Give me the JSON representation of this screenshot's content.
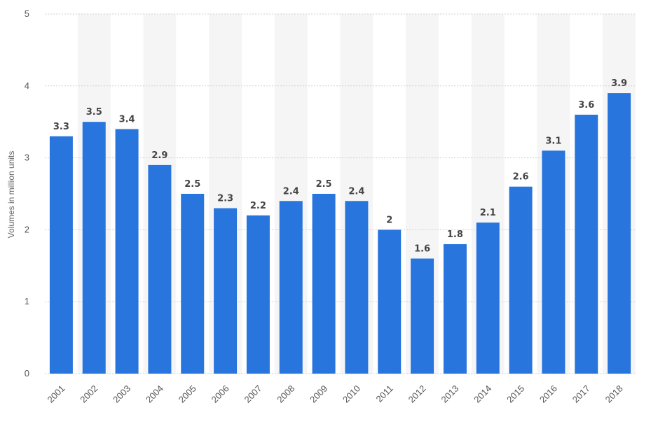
{
  "chart_data": {
    "type": "bar",
    "title": "",
    "xlabel": "",
    "ylabel": "Volumes in million units",
    "categories": [
      "2001",
      "2002",
      "2003",
      "2004",
      "2005",
      "2006",
      "2007",
      "2008",
      "2009",
      "2010",
      "2011",
      "2012",
      "2013",
      "2014",
      "2015",
      "2016",
      "2017",
      "2018"
    ],
    "values": [
      3.3,
      3.5,
      3.4,
      2.9,
      2.5,
      2.3,
      2.2,
      2.4,
      2.5,
      2.4,
      2,
      1.6,
      1.8,
      2.1,
      2.6,
      3.1,
      3.6,
      3.9
    ],
    "value_labels": [
      "3.3",
      "3.5",
      "3.4",
      "2.9",
      "2.5",
      "2.3",
      "2.2",
      "2.4",
      "2.5",
      "2.4",
      "2",
      "1.6",
      "1.8",
      "2.1",
      "2.6",
      "3.1",
      "3.6",
      "3.9"
    ],
    "ylim": [
      0,
      5
    ],
    "yticks": [
      "0",
      "1",
      "2",
      "3",
      "4",
      "5"
    ],
    "grid": true,
    "legend": "none",
    "colors": {
      "bar": "#2875de",
      "band": "#f5f5f5",
      "grid": "#cfcfcf"
    }
  }
}
